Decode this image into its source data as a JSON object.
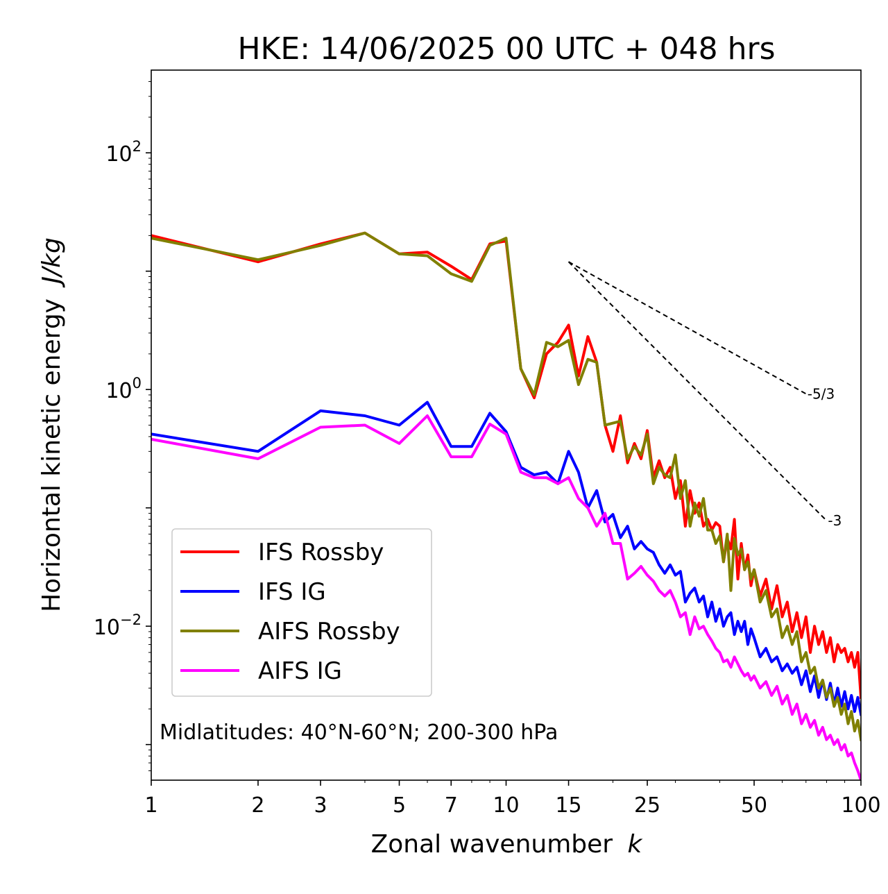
{
  "chart_data": {
    "type": "line",
    "title": "HKE: 14/06/2025 00 UTC + 048 hrs",
    "xlabel": "Zonal wavenumber",
    "xlabel_italic": "k",
    "ylabel": "Horizontal kinetic energy",
    "ylabel_italic": "J/kg",
    "xscale": "log",
    "yscale": "log",
    "xlim": [
      1,
      100
    ],
    "ylim": [
      0.0005,
      500
    ],
    "x_tick_labels": [
      "1",
      "2",
      "3",
      "5",
      "7",
      "10",
      "15",
      "25",
      "50",
      "100"
    ],
    "x_tick_values": [
      1,
      2,
      3,
      5,
      7,
      10,
      15,
      25,
      50,
      100
    ],
    "y_tick_values": [
      100,
      1,
      0.01
    ],
    "y_tick_base": "10",
    "y_tick_exponents": [
      "2",
      "0",
      "−2"
    ],
    "annotation": "Midlatitudes: 40°N-60°N; 200-300 hPa",
    "legend_position": "lower-left",
    "reference_slopes": [
      {
        "label": "-5/3",
        "x": [
          15,
          70
        ],
        "y": [
          12,
          0.92
        ]
      },
      {
        "label": "-3",
        "x": [
          15,
          80
        ],
        "y": [
          12,
          0.078
        ]
      }
    ],
    "series": [
      {
        "name": "IFS Rossby",
        "color": "#ff0000",
        "x": [
          1,
          2,
          3,
          4,
          5,
          6,
          7,
          8,
          9,
          10,
          11,
          12,
          13,
          14,
          15,
          16,
          17,
          18,
          19,
          20,
          21,
          22,
          23,
          24,
          25,
          26,
          27,
          28,
          29,
          30,
          31,
          32,
          33,
          34,
          35,
          36,
          37,
          38,
          39,
          40,
          41,
          42,
          43,
          44,
          45,
          46,
          47,
          48,
          49,
          50,
          52,
          54,
          56,
          58,
          60,
          62,
          64,
          66,
          68,
          70,
          72,
          74,
          76,
          78,
          80,
          82,
          84,
          86,
          88,
          90,
          92,
          94,
          96,
          98,
          100
        ],
        "y": [
          20,
          12,
          17,
          21,
          14,
          14.5,
          11,
          8.5,
          17,
          18,
          1.5,
          0.85,
          2,
          2.5,
          3.5,
          1.3,
          2.8,
          1.7,
          0.5,
          0.3,
          0.6,
          0.24,
          0.35,
          0.26,
          0.45,
          0.18,
          0.25,
          0.18,
          0.22,
          0.12,
          0.17,
          0.07,
          0.14,
          0.09,
          0.11,
          0.07,
          0.08,
          0.065,
          0.075,
          0.07,
          0.035,
          0.055,
          0.045,
          0.08,
          0.025,
          0.05,
          0.03,
          0.04,
          0.022,
          0.03,
          0.018,
          0.025,
          0.014,
          0.022,
          0.012,
          0.016,
          0.009,
          0.013,
          0.008,
          0.012,
          0.006,
          0.01,
          0.007,
          0.009,
          0.006,
          0.008,
          0.005,
          0.007,
          0.006,
          0.0065,
          0.005,
          0.006,
          0.0045,
          0.006,
          0.0025
        ]
      },
      {
        "name": "IFS IG",
        "color": "#0000ff",
        "x": [
          1,
          2,
          3,
          4,
          5,
          6,
          7,
          8,
          9,
          10,
          11,
          12,
          13,
          14,
          15,
          16,
          17,
          18,
          19,
          20,
          21,
          22,
          23,
          24,
          25,
          26,
          27,
          28,
          29,
          30,
          31,
          32,
          33,
          34,
          35,
          36,
          37,
          38,
          39,
          40,
          41,
          42,
          43,
          44,
          45,
          46,
          47,
          48,
          49,
          50,
          52,
          54,
          56,
          58,
          60,
          62,
          64,
          66,
          68,
          70,
          72,
          74,
          76,
          78,
          80,
          82,
          84,
          86,
          88,
          90,
          92,
          94,
          96,
          98,
          100
        ],
        "y": [
          0.42,
          0.3,
          0.66,
          0.6,
          0.5,
          0.78,
          0.33,
          0.33,
          0.63,
          0.44,
          0.22,
          0.19,
          0.2,
          0.16,
          0.3,
          0.2,
          0.1,
          0.14,
          0.076,
          0.088,
          0.056,
          0.07,
          0.045,
          0.052,
          0.045,
          0.042,
          0.033,
          0.028,
          0.033,
          0.027,
          0.029,
          0.016,
          0.019,
          0.021,
          0.016,
          0.018,
          0.012,
          0.016,
          0.011,
          0.014,
          0.01,
          0.012,
          0.013,
          0.0085,
          0.011,
          0.009,
          0.011,
          0.007,
          0.0095,
          0.008,
          0.0055,
          0.0065,
          0.005,
          0.0055,
          0.0042,
          0.0048,
          0.004,
          0.0045,
          0.0032,
          0.0042,
          0.0028,
          0.0038,
          0.0025,
          0.0035,
          0.0024,
          0.0033,
          0.0022,
          0.003,
          0.0021,
          0.0028,
          0.002,
          0.0026,
          0.0019,
          0.0025,
          0.0018
        ]
      },
      {
        "name": "AIFS Rossby",
        "color": "#808000",
        "x": [
          1,
          2,
          3,
          4,
          5,
          6,
          7,
          8,
          9,
          10,
          11,
          12,
          13,
          14,
          15,
          16,
          17,
          18,
          19,
          20,
          21,
          22,
          23,
          24,
          25,
          26,
          27,
          28,
          29,
          30,
          31,
          32,
          33,
          34,
          35,
          36,
          37,
          38,
          39,
          40,
          41,
          42,
          43,
          44,
          45,
          46,
          47,
          48,
          49,
          50,
          52,
          54,
          56,
          58,
          60,
          62,
          64,
          66,
          68,
          70,
          72,
          74,
          76,
          78,
          80,
          82,
          84,
          86,
          88,
          90,
          92,
          94,
          96,
          98,
          100
        ],
        "y": [
          19,
          12.5,
          16.5,
          21,
          14,
          13.5,
          9.5,
          8.2,
          16.5,
          19,
          1.5,
          0.9,
          2.5,
          2.3,
          2.6,
          1.1,
          1.8,
          1.7,
          0.5,
          0.52,
          0.54,
          0.26,
          0.33,
          0.28,
          0.42,
          0.16,
          0.22,
          0.19,
          0.18,
          0.28,
          0.12,
          0.17,
          0.07,
          0.11,
          0.085,
          0.12,
          0.065,
          0.065,
          0.05,
          0.058,
          0.035,
          0.06,
          0.02,
          0.055,
          0.04,
          0.045,
          0.03,
          0.035,
          0.025,
          0.03,
          0.016,
          0.02,
          0.012,
          0.014,
          0.008,
          0.01,
          0.007,
          0.009,
          0.005,
          0.006,
          0.004,
          0.0045,
          0.003,
          0.0035,
          0.0025,
          0.003,
          0.0021,
          0.0025,
          0.0018,
          0.0022,
          0.0015,
          0.0019,
          0.0013,
          0.0016,
          0.0011
        ]
      },
      {
        "name": "AIFS IG",
        "color": "#ff00ff",
        "x": [
          1,
          2,
          3,
          4,
          5,
          6,
          7,
          8,
          9,
          10,
          11,
          12,
          13,
          14,
          15,
          16,
          17,
          18,
          19,
          20,
          21,
          22,
          23,
          24,
          25,
          26,
          27,
          28,
          29,
          30,
          31,
          32,
          33,
          34,
          35,
          36,
          37,
          38,
          39,
          40,
          41,
          42,
          43,
          44,
          45,
          46,
          47,
          48,
          49,
          50,
          52,
          54,
          56,
          58,
          60,
          62,
          64,
          66,
          68,
          70,
          72,
          74,
          76,
          78,
          80,
          82,
          84,
          86,
          88,
          90,
          92,
          94,
          96,
          98,
          100
        ],
        "y": [
          0.38,
          0.26,
          0.48,
          0.5,
          0.35,
          0.6,
          0.27,
          0.27,
          0.51,
          0.42,
          0.2,
          0.18,
          0.18,
          0.16,
          0.18,
          0.12,
          0.1,
          0.07,
          0.09,
          0.05,
          0.05,
          0.025,
          0.028,
          0.032,
          0.027,
          0.024,
          0.02,
          0.018,
          0.02,
          0.016,
          0.012,
          0.013,
          0.0085,
          0.012,
          0.0095,
          0.01,
          0.0085,
          0.0075,
          0.0065,
          0.006,
          0.005,
          0.0052,
          0.0045,
          0.0055,
          0.0048,
          0.0042,
          0.0038,
          0.004,
          0.0035,
          0.0038,
          0.003,
          0.0034,
          0.0026,
          0.0031,
          0.0022,
          0.0026,
          0.0018,
          0.0022,
          0.0015,
          0.0018,
          0.0014,
          0.0016,
          0.0012,
          0.0014,
          0.0011,
          0.0012,
          0.001,
          0.0011,
          0.0009,
          0.001,
          0.0008,
          0.00085,
          0.0007,
          0.0006,
          0.0005
        ]
      }
    ]
  }
}
